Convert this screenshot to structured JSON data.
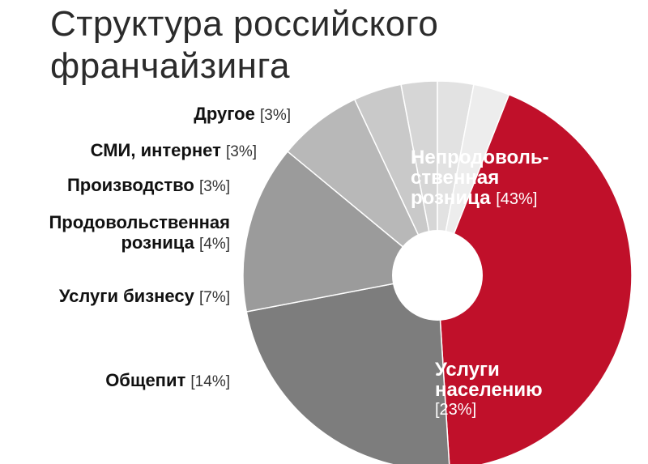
{
  "chart_data": {
    "type": "pie",
    "title_lines": [
      "Структура российского",
      "франчайзинга"
    ],
    "slices": [
      {
        "label_lines": [
          "Непродоволь-",
          "ственная",
          "розница"
        ],
        "value_text": "[43%]",
        "value": 43,
        "color": "#c0102a"
      },
      {
        "label_lines": [
          "Услуги",
          "населению"
        ],
        "value_text": "[23%]",
        "value": 23,
        "color": "#7d7d7d"
      },
      {
        "label_lines": [
          "Общепит"
        ],
        "value_text": "[14%]",
        "value": 14,
        "color": "#9b9b9b"
      },
      {
        "label_lines": [
          "Услуги бизнесу"
        ],
        "value_text": "[7%]",
        "value": 7,
        "color": "#b8b8b8"
      },
      {
        "label_lines": [
          "Продовольственная",
          "розница"
        ],
        "value_text": "[4%]",
        "value": 4,
        "color": "#c9c9c9"
      },
      {
        "label_lines": [
          "Производство"
        ],
        "value_text": "[3%]",
        "value": 3,
        "color": "#d6d6d6"
      },
      {
        "label_lines": [
          "СМИ, интернет"
        ],
        "value_text": "[3%]",
        "value": 3,
        "color": "#e2e2e2"
      },
      {
        "label_lines": [
          "Другое"
        ],
        "value_text": "[3%]",
        "value": 3,
        "color": "#ededed"
      }
    ]
  }
}
